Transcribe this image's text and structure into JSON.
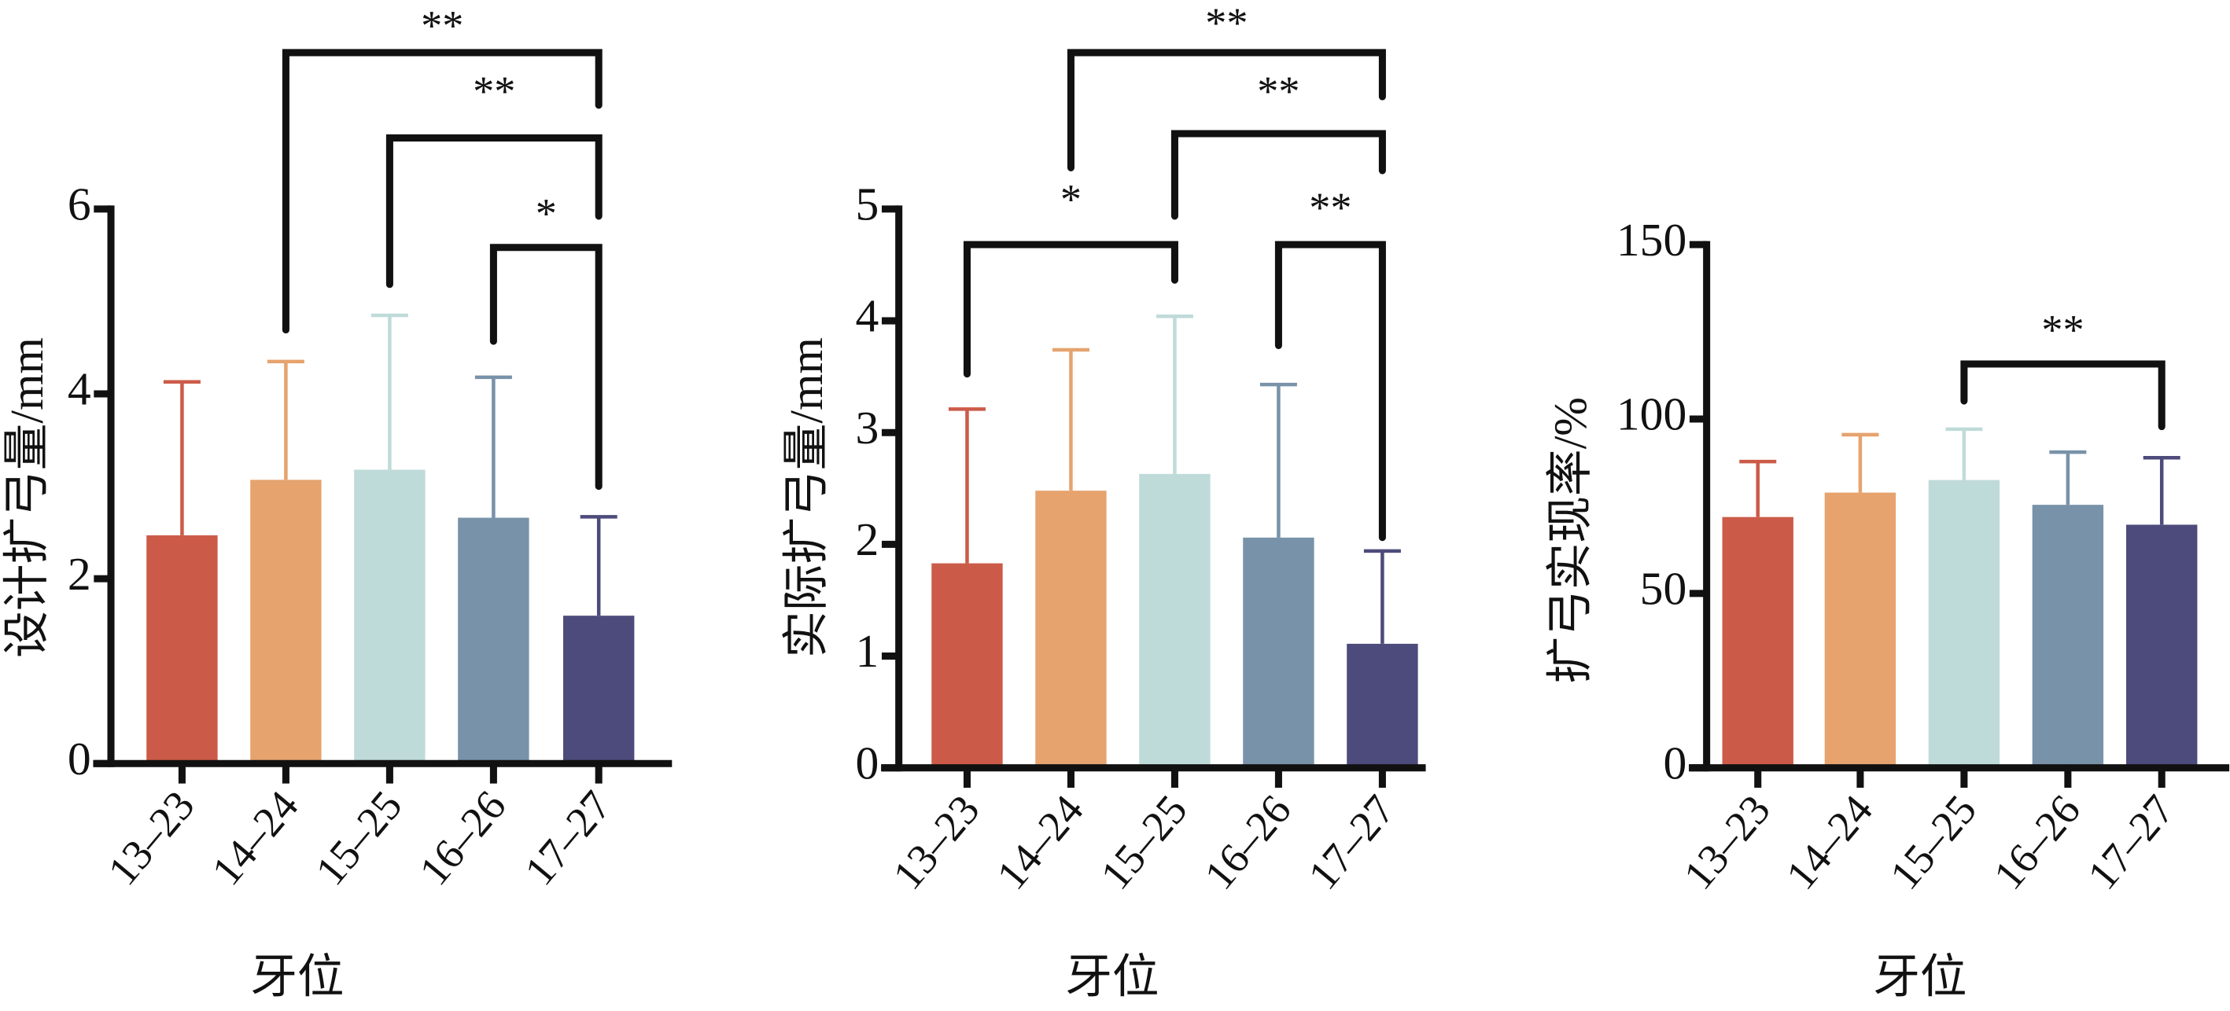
{
  "chart_data": [
    {
      "type": "bar",
      "title": "",
      "xlabel": "牙位",
      "ylabel": "设计扩弓量/mm",
      "categories": [
        "13–23",
        "14–24",
        "15–25",
        "16–26",
        "17–27"
      ],
      "values": [
        2.47,
        3.07,
        3.18,
        2.66,
        1.6
      ],
      "error_upper": [
        4.13,
        4.35,
        4.85,
        4.18,
        2.67
      ],
      "ylim": [
        0,
        6
      ],
      "yticks": [
        "0",
        "2",
        "4",
        "6"
      ],
      "ytick_values": [
        0,
        2,
        4,
        6
      ],
      "colors": [
        "#cb5b48",
        "#e6a36e",
        "#bfdbd9",
        "#7892a9",
        "#4d4b7b"
      ],
      "significance": [
        {
          "from": 1,
          "to": 4,
          "label": "**"
        },
        {
          "from": 2,
          "to": 4,
          "label": "**"
        },
        {
          "from": 3,
          "to": 4,
          "label": "*"
        }
      ]
    },
    {
      "type": "bar",
      "title": "",
      "xlabel": "牙位",
      "ylabel": "实际扩弓量/mm",
      "categories": [
        "13–23",
        "14–24",
        "15–25",
        "16–26",
        "17–27"
      ],
      "values": [
        1.83,
        2.48,
        2.63,
        2.06,
        1.11
      ],
      "error_upper": [
        3.21,
        3.74,
        4.04,
        3.43,
        1.94
      ],
      "ylim": [
        0,
        5
      ],
      "yticks": [
        "0",
        "1",
        "2",
        "3",
        "4",
        "5"
      ],
      "ytick_values": [
        0,
        1,
        2,
        3,
        4,
        5
      ],
      "colors": [
        "#cb5b48",
        "#e6a36e",
        "#bfdbd9",
        "#7892a9",
        "#4d4b7b"
      ],
      "significance": [
        {
          "from": 1,
          "to": 4,
          "label": "**"
        },
        {
          "from": 2,
          "to": 4,
          "label": "**"
        },
        {
          "from": 0,
          "to": 2,
          "label": "*"
        },
        {
          "from": 3,
          "to": 4,
          "label": "**"
        }
      ]
    },
    {
      "type": "bar",
      "title": "",
      "xlabel": "牙位",
      "ylabel": "扩弓实现率/%",
      "categories": [
        "13–23",
        "14–24",
        "15–25",
        "16–26",
        "17–27"
      ],
      "values": [
        71.9,
        78.9,
        82.5,
        75.4,
        69.7
      ],
      "error_upper": [
        87.8,
        95.5,
        97.1,
        90.5,
        88.9
      ],
      "ylim": [
        0,
        150
      ],
      "yticks": [
        "0",
        "50",
        "100",
        "150"
      ],
      "ytick_values": [
        0,
        50,
        100,
        150
      ],
      "colors": [
        "#cb5b48",
        "#e6a36e",
        "#bfdbd9",
        "#7892a9",
        "#4d4b7b"
      ],
      "significance": [
        {
          "from": 2,
          "to": 4,
          "label": "**"
        }
      ]
    }
  ]
}
